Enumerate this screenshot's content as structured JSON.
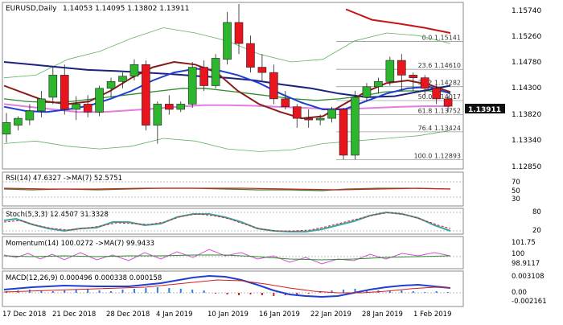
{
  "main": {
    "title": "EURUSD,Daily",
    "ohlc": "1.14053 1.14095 1.13802 1.13911",
    "current_price": "1.13911",
    "price_ticks": [
      "1.15740",
      "1.15260",
      "1.14780",
      "1.14300",
      "1.13820",
      "1.13340",
      "1.12850"
    ],
    "fib_levels": [
      {
        "label": "0.0 1.15141",
        "value": 1.15141
      },
      {
        "label": "23.6 1.14610",
        "value": 1.1461
      },
      {
        "label": "38.2 1.14282",
        "value": 1.14282
      },
      {
        "label": "50.0 1.14017",
        "value": 1.14017
      },
      {
        "label": "61.8 1.13752",
        "value": 1.13752
      },
      {
        "label": "76.4 1.13424",
        "value": 1.13424
      },
      {
        "label": "100.0 1.12893",
        "value": 1.12893
      }
    ]
  },
  "x_axis": {
    "labels": [
      "17 Dec 2018",
      "21 Dec 2018",
      "28 Dec 2018",
      "4 Jan 2019",
      "10 Jan 2019",
      "16 Jan 2019",
      "22 Jan 2019",
      "28 Jan 2019",
      "1 Feb 2019"
    ]
  },
  "rsi": {
    "label": "RSI(14) 47.6327 ->MA(7) 52.5751",
    "ticks": [
      "70",
      "50",
      "30"
    ]
  },
  "stoch": {
    "label": "Stoch(5,3,3) 12.4507 31.3328",
    "ticks": [
      "80",
      "20"
    ]
  },
  "momentum": {
    "label": "Momentum(14) 100.0272 ->MA(7) 99.9433",
    "ticks": [
      "101.75",
      "100",
      "98.9117"
    ]
  },
  "macd": {
    "label": "MACD(12,26,9) 0.000496 0.000338 0.000158",
    "ticks": [
      "0.003108",
      "0.00",
      "-0.002161"
    ]
  },
  "colors": {
    "bull": "#2db52d",
    "bear": "#e8141e",
    "axis_text": "#000000",
    "macd_line": "#1f3fd0",
    "macd_signal": "#d41e1e",
    "stoch_k": "#3aa6a6",
    "stoch_d": "#d41e1e",
    "momentum": "#2e8b2e",
    "momentum_ma": "#d050d0"
  },
  "chart_data": {
    "type": "candlestick",
    "symbol": "EURUSD",
    "timeframe": "Daily",
    "ylim": [
      1.1275,
      1.1585
    ],
    "candles": [
      [
        1.1338,
        1.1378,
        1.1322,
        1.136
      ],
      [
        1.1355,
        1.1372,
        1.1345,
        1.1368
      ],
      [
        1.1365,
        1.1395,
        1.1355,
        1.1382
      ],
      [
        1.1382,
        1.142,
        1.137,
        1.1405
      ],
      [
        1.1408,
        1.1465,
        1.1395,
        1.145
      ],
      [
        1.145,
        1.147,
        1.1375,
        1.1385
      ],
      [
        1.1385,
        1.141,
        1.1365,
        1.1395
      ],
      [
        1.1395,
        1.1412,
        1.137,
        1.138
      ],
      [
        1.138,
        1.143,
        1.1372,
        1.1425
      ],
      [
        1.1425,
        1.1445,
        1.1408,
        1.1438
      ],
      [
        1.1438,
        1.1455,
        1.1425,
        1.1448
      ],
      [
        1.1448,
        1.148,
        1.144,
        1.147
      ],
      [
        1.147,
        1.1478,
        1.1345,
        1.1355
      ],
      [
        1.1355,
        1.14,
        1.132,
        1.1395
      ],
      [
        1.1395,
        1.1412,
        1.1375,
        1.1385
      ],
      [
        1.1385,
        1.14,
        1.138,
        1.1395
      ],
      [
        1.1395,
        1.1475,
        1.1388,
        1.1465
      ],
      [
        1.1465,
        1.1478,
        1.142,
        1.143
      ],
      [
        1.143,
        1.149,
        1.1425,
        1.1482
      ],
      [
        1.148,
        1.157,
        1.147,
        1.155
      ],
      [
        1.155,
        1.1585,
        1.149,
        1.151
      ],
      [
        1.151,
        1.1525,
        1.1455,
        1.1465
      ],
      [
        1.1465,
        1.149,
        1.144,
        1.1455
      ],
      [
        1.1455,
        1.147,
        1.1395,
        1.1405
      ],
      [
        1.1405,
        1.142,
        1.1385,
        1.139
      ],
      [
        1.139,
        1.1395,
        1.135,
        1.1368
      ],
      [
        1.1368,
        1.1385,
        1.135,
        1.1365
      ],
      [
        1.1365,
        1.1375,
        1.1355,
        1.1368
      ],
      [
        1.1368,
        1.139,
        1.136,
        1.1385
      ],
      [
        1.1385,
        1.1388,
        1.129,
        1.1298
      ],
      [
        1.1298,
        1.142,
        1.129,
        1.1408
      ],
      [
        1.1408,
        1.1435,
        1.14,
        1.1428
      ],
      [
        1.1428,
        1.1445,
        1.1415,
        1.1438
      ],
      [
        1.1438,
        1.1485,
        1.143,
        1.1478
      ],
      [
        1.1478,
        1.149,
        1.142,
        1.145
      ],
      [
        1.145,
        1.1455,
        1.142,
        1.1445
      ],
      [
        1.1445,
        1.145,
        1.141,
        1.1425
      ],
      [
        1.1425,
        1.1432,
        1.1395,
        1.1405
      ],
      [
        1.1405,
        1.141,
        1.138,
        1.1391
      ]
    ],
    "overlays": {
      "sma200_red": [
        1.1575,
        1.1555,
        1.1548,
        1.154,
        1.153
      ],
      "sma_navy": [
        1.1475,
        1.147,
        1.1465,
        1.146,
        1.1458,
        1.1455,
        1.1452,
        1.1448,
        1.1445,
        1.144,
        1.1432,
        1.1425,
        1.1415,
        1.1408,
        1.141,
        1.142,
        1.143
      ],
      "ma_maroon": [
        1.143,
        1.1415,
        1.14,
        1.1395,
        1.14,
        1.142,
        1.1445,
        1.1465,
        1.1475,
        1.147,
        1.1455,
        1.142,
        1.1395,
        1.138,
        1.1368,
        1.1372,
        1.1395,
        1.1418,
        1.1435,
        1.144,
        1.1432,
        1.1418
      ],
      "ma_blue": [
        1.139,
        1.1382,
        1.138,
        1.1385,
        1.1392,
        1.1405,
        1.142,
        1.144,
        1.1455,
        1.1462,
        1.146,
        1.145,
        1.1435,
        1.1415,
        1.1398,
        1.1385,
        1.1385,
        1.14,
        1.1415,
        1.1425,
        1.1428,
        1.1415
      ],
      "ma_green": [
        1.1405,
        1.14,
        1.1398,
        1.14,
        1.1405,
        1.141,
        1.1415,
        1.142,
        1.1425,
        1.1425,
        1.142,
        1.1415,
        1.141,
        1.1405,
        1.1402,
        1.1405,
        1.141,
        1.1418,
        1.142,
        1.142,
        1.1418
      ],
      "ma_magenta": [
        1.1395,
        1.139,
        1.1385,
        1.138,
        1.138,
        1.1383,
        1.1386,
        1.139,
        1.1393,
        1.1393,
        1.1392,
        1.139,
        1.1388,
        1.1386,
        1.1386,
        1.1388,
        1.139,
        1.1391,
        1.1391
      ],
      "bb_upper": [
        1.1445,
        1.145,
        1.148,
        1.1495,
        1.152,
        1.154,
        1.153,
        1.1515,
        1.149,
        1.1475,
        1.148,
        1.1515,
        1.153,
        1.1525,
        1.151
      ],
      "bb_lower": [
        1.132,
        1.1325,
        1.1315,
        1.131,
        1.1315,
        1.133,
        1.1325,
        1.131,
        1.1305,
        1.1308,
        1.132,
        1.1325,
        1.133,
        1.1335,
        1.1345
      ]
    }
  }
}
